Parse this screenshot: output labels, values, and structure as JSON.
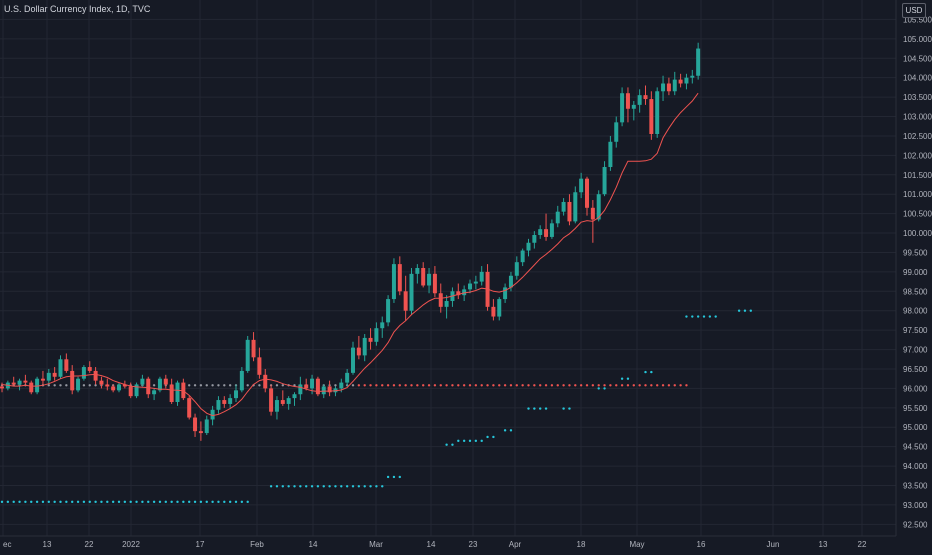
{
  "header": {
    "title": "U.S. Dollar Currency Index, 1D, TVC",
    "currency": "USD"
  },
  "colors": {
    "background": "#161a25",
    "up": "#26a69a",
    "down": "#ef5350",
    "ma_line": "#ef5350",
    "dots_bull": "#26c6da",
    "dots_bear": "#ef5350",
    "dots_neutral": "#9598a1",
    "grid": "#232733"
  },
  "chart_data": {
    "type": "candlestick",
    "y_ticks": [
      "92.500",
      "93.000",
      "93.500",
      "94.000",
      "94.500",
      "95.000",
      "95.500",
      "96.000",
      "96.500",
      "97.000",
      "97.500",
      "98.000",
      "98.500",
      "99.000",
      "99.500",
      "100.000",
      "100.500",
      "101.000",
      "101.500",
      "102.000",
      "102.500",
      "103.000",
      "103.500",
      "104.000",
      "104.500",
      "105.000",
      "105.500"
    ],
    "x_ticks": [
      "ec",
      "13",
      "22",
      "2022",
      "17",
      "Feb",
      "14",
      "Mar",
      "14",
      "23",
      "Apr",
      "18",
      "May",
      "16",
      "Jun",
      "13",
      "22"
    ],
    "ylim": [
      92.2,
      106.0
    ],
    "ohlc": [
      [
        96.05,
        96.15,
        95.9,
        96.0
      ],
      [
        96.0,
        96.2,
        95.95,
        96.15
      ],
      [
        96.15,
        96.3,
        96.05,
        96.1
      ],
      [
        96.1,
        96.25,
        95.95,
        96.2
      ],
      [
        96.2,
        96.35,
        96.1,
        96.15
      ],
      [
        96.15,
        96.2,
        95.85,
        95.9
      ],
      [
        95.9,
        96.3,
        95.85,
        96.25
      ],
      [
        96.25,
        96.45,
        96.1,
        96.2
      ],
      [
        96.2,
        96.5,
        96.1,
        96.4
      ],
      [
        96.4,
        96.55,
        96.2,
        96.3
      ],
      [
        96.3,
        96.85,
        96.25,
        96.75
      ],
      [
        96.75,
        96.9,
        96.4,
        96.45
      ],
      [
        96.45,
        96.6,
        95.85,
        95.95
      ],
      [
        95.95,
        96.3,
        95.9,
        96.25
      ],
      [
        96.25,
        96.6,
        96.2,
        96.55
      ],
      [
        96.55,
        96.7,
        96.4,
        96.45
      ],
      [
        96.45,
        96.55,
        96.1,
        96.2
      ],
      [
        96.2,
        96.3,
        96.0,
        96.1
      ],
      [
        96.1,
        96.25,
        95.95,
        96.05
      ],
      [
        96.05,
        96.1,
        95.9,
        95.95
      ],
      [
        95.95,
        96.15,
        95.9,
        96.1
      ],
      [
        96.1,
        96.2,
        96.0,
        96.05
      ],
      [
        96.05,
        96.15,
        95.75,
        95.8
      ],
      [
        95.8,
        96.15,
        95.75,
        96.1
      ],
      [
        96.1,
        96.35,
        96.05,
        96.25
      ],
      [
        96.25,
        96.3,
        95.75,
        95.85
      ],
      [
        95.85,
        96.0,
        95.7,
        95.95
      ],
      [
        95.95,
        96.3,
        95.9,
        96.25
      ],
      [
        96.25,
        96.35,
        96.0,
        96.1
      ],
      [
        96.1,
        96.25,
        95.6,
        95.65
      ],
      [
        95.65,
        96.2,
        95.55,
        96.15
      ],
      [
        96.15,
        96.25,
        95.7,
        95.75
      ],
      [
        95.75,
        95.8,
        95.2,
        95.25
      ],
      [
        95.25,
        95.35,
        94.75,
        94.9
      ],
      [
        94.9,
        95.15,
        94.65,
        94.85
      ],
      [
        94.85,
        95.3,
        94.8,
        95.2
      ],
      [
        95.2,
        95.55,
        95.05,
        95.45
      ],
      [
        95.45,
        95.8,
        95.35,
        95.7
      ],
      [
        95.7,
        95.8,
        95.5,
        95.6
      ],
      [
        95.6,
        95.85,
        95.5,
        95.75
      ],
      [
        95.75,
        96.1,
        95.65,
        95.95
      ],
      [
        95.95,
        96.55,
        95.9,
        96.45
      ],
      [
        96.45,
        97.35,
        96.4,
        97.25
      ],
      [
        97.25,
        97.45,
        96.7,
        96.8
      ],
      [
        96.8,
        97.05,
        96.25,
        96.35
      ],
      [
        96.35,
        96.5,
        95.9,
        96.0
      ],
      [
        96.0,
        96.1,
        95.3,
        95.4
      ],
      [
        95.4,
        95.8,
        95.2,
        95.7
      ],
      [
        95.7,
        95.95,
        95.55,
        95.6
      ],
      [
        95.6,
        95.8,
        95.45,
        95.75
      ],
      [
        95.75,
        95.9,
        95.55,
        95.85
      ],
      [
        95.85,
        96.3,
        95.7,
        96.1
      ],
      [
        96.1,
        96.25,
        95.95,
        96.0
      ],
      [
        96.0,
        96.35,
        95.85,
        96.25
      ],
      [
        96.25,
        96.3,
        95.8,
        95.85
      ],
      [
        95.85,
        96.1,
        95.75,
        96.05
      ],
      [
        96.05,
        96.2,
        95.8,
        95.9
      ],
      [
        95.9,
        96.05,
        95.8,
        96.0
      ],
      [
        96.0,
        96.25,
        95.9,
        96.15
      ],
      [
        96.15,
        96.5,
        96.05,
        96.4
      ],
      [
        96.4,
        97.2,
        96.35,
        97.05
      ],
      [
        97.05,
        97.35,
        96.75,
        96.85
      ],
      [
        96.85,
        97.4,
        96.7,
        97.3
      ],
      [
        97.3,
        97.55,
        97.0,
        97.2
      ],
      [
        97.2,
        97.7,
        97.1,
        97.55
      ],
      [
        97.55,
        97.85,
        97.3,
        97.7
      ],
      [
        97.7,
        98.4,
        97.6,
        98.3
      ],
      [
        98.3,
        99.35,
        98.2,
        99.2
      ],
      [
        99.2,
        99.4,
        98.4,
        98.5
      ],
      [
        98.5,
        98.9,
        97.75,
        98.0
      ],
      [
        98.0,
        99.1,
        97.9,
        98.95
      ],
      [
        98.95,
        99.2,
        98.7,
        99.1
      ],
      [
        99.1,
        99.25,
        98.6,
        98.65
      ],
      [
        98.65,
        99.1,
        98.45,
        98.95
      ],
      [
        98.95,
        99.15,
        98.35,
        98.45
      ],
      [
        98.45,
        98.7,
        97.95,
        98.1
      ],
      [
        98.1,
        98.4,
        97.8,
        98.25
      ],
      [
        98.25,
        98.6,
        98.1,
        98.5
      ],
      [
        98.5,
        98.7,
        98.3,
        98.4
      ],
      [
        98.4,
        98.65,
        98.25,
        98.55
      ],
      [
        98.55,
        98.8,
        98.45,
        98.7
      ],
      [
        98.7,
        98.9,
        98.55,
        98.75
      ],
      [
        98.75,
        99.15,
        98.65,
        99.0
      ],
      [
        99.0,
        99.2,
        98.0,
        98.1
      ],
      [
        98.1,
        98.3,
        97.75,
        97.85
      ],
      [
        97.85,
        98.35,
        97.75,
        98.3
      ],
      [
        98.3,
        98.7,
        98.2,
        98.6
      ],
      [
        98.6,
        99.0,
        98.5,
        98.9
      ],
      [
        98.9,
        99.4,
        98.8,
        99.25
      ],
      [
        99.25,
        99.6,
        99.15,
        99.55
      ],
      [
        99.55,
        99.85,
        99.4,
        99.75
      ],
      [
        99.75,
        100.05,
        99.6,
        99.95
      ],
      [
        99.95,
        100.2,
        99.85,
        100.1
      ],
      [
        100.1,
        100.5,
        99.8,
        99.9
      ],
      [
        99.9,
        100.35,
        99.85,
        100.25
      ],
      [
        100.25,
        100.7,
        100.15,
        100.55
      ],
      [
        100.55,
        100.9,
        100.45,
        100.8
      ],
      [
        100.8,
        101.0,
        100.2,
        100.3
      ],
      [
        100.3,
        101.2,
        100.25,
        101.05
      ],
      [
        101.05,
        101.55,
        100.9,
        101.4
      ],
      [
        101.4,
        101.45,
        100.45,
        100.65
      ],
      [
        100.65,
        100.85,
        99.75,
        100.35
      ],
      [
        100.35,
        101.1,
        100.3,
        101.0
      ],
      [
        101.0,
        101.85,
        100.95,
        101.7
      ],
      [
        101.7,
        102.5,
        101.6,
        102.35
      ],
      [
        102.35,
        103.0,
        102.2,
        102.85
      ],
      [
        102.85,
        103.75,
        102.75,
        103.6
      ],
      [
        103.6,
        103.75,
        102.85,
        103.2
      ],
      [
        103.2,
        103.4,
        102.9,
        103.3
      ],
      [
        103.3,
        103.7,
        103.1,
        103.55
      ],
      [
        103.55,
        103.8,
        103.3,
        103.45
      ],
      [
        103.45,
        103.65,
        102.4,
        102.55
      ],
      [
        102.55,
        103.75,
        102.45,
        103.65
      ],
      [
        103.65,
        104.05,
        103.4,
        103.85
      ],
      [
        103.85,
        104.0,
        103.55,
        103.65
      ],
      [
        103.65,
        104.15,
        103.55,
        103.95
      ],
      [
        103.95,
        104.1,
        103.75,
        103.85
      ],
      [
        103.85,
        104.1,
        103.7,
        104.0
      ],
      [
        104.0,
        104.2,
        103.85,
        104.05
      ],
      [
        104.05,
        104.9,
        103.95,
        104.75
      ]
    ],
    "ma": [
      96.1,
      96.08,
      96.06,
      96.06,
      96.08,
      96.06,
      96.06,
      96.08,
      96.12,
      96.18,
      96.25,
      96.3,
      96.32,
      96.32,
      96.33,
      96.35,
      96.36,
      96.33,
      96.28,
      96.2,
      96.15,
      96.1,
      96.06,
      96.04,
      96.03,
      96.02,
      96.0,
      95.98,
      95.98,
      95.96,
      95.95,
      95.94,
      95.82,
      95.66,
      95.48,
      95.36,
      95.3,
      95.33,
      95.4,
      95.48,
      95.58,
      95.72,
      95.92,
      96.1,
      96.2,
      96.24,
      96.22,
      96.18,
      96.12,
      96.08,
      96.05,
      96.03,
      95.98,
      95.94,
      95.92,
      95.93,
      95.93,
      95.94,
      95.96,
      96.02,
      96.18,
      96.35,
      96.52,
      96.66,
      96.82,
      96.98,
      97.18,
      97.45,
      97.62,
      97.74,
      97.9,
      98.02,
      98.15,
      98.25,
      98.32,
      98.32,
      98.34,
      98.38,
      98.42,
      98.46,
      98.48,
      98.52,
      98.58,
      98.56,
      98.5,
      98.48,
      98.52,
      98.6,
      98.72,
      98.86,
      99.02,
      99.18,
      99.34,
      99.45,
      99.58,
      99.72,
      99.88,
      99.98,
      100.12,
      100.28,
      100.32,
      100.3,
      100.4,
      100.58,
      100.86,
      101.18,
      101.55,
      101.85,
      101.85,
      101.85,
      101.86,
      101.9,
      102.05,
      102.45,
      102.7,
      102.92,
      103.1,
      103.25,
      103.4,
      103.6
    ],
    "dot_groups": [
      {
        "kind": "neutral",
        "level": 96.08,
        "from": 0,
        "to": 60
      },
      {
        "kind": "bear",
        "level": 96.08,
        "from": 61,
        "to": 117
      },
      {
        "kind": "bull",
        "level": 93.08,
        "from": 0,
        "to": 42
      },
      {
        "kind": "bull",
        "level": 93.48,
        "from": 46,
        "to": 65
      },
      {
        "kind": "bull",
        "level": 93.72,
        "from": 66,
        "to": 68
      },
      {
        "kind": "bull",
        "level": 94.55,
        "from": 76,
        "to": 77
      },
      {
        "kind": "bull",
        "level": 94.65,
        "from": 78,
        "to": 82
      },
      {
        "kind": "bull",
        "level": 94.75,
        "from": 83,
        "to": 84
      },
      {
        "kind": "bull",
        "level": 94.92,
        "from": 86,
        "to": 87
      },
      {
        "kind": "bull",
        "level": 95.48,
        "from": 90,
        "to": 93
      },
      {
        "kind": "bull",
        "level": 95.48,
        "from": 96,
        "to": 97
      },
      {
        "kind": "bull",
        "level": 96.0,
        "from": 102,
        "to": 103
      },
      {
        "kind": "bull",
        "level": 96.25,
        "from": 106,
        "to": 107
      },
      {
        "kind": "bull",
        "level": 96.42,
        "from": 110,
        "to": 111
      },
      {
        "kind": "bull",
        "level": 97.85,
        "from": 117,
        "to": 122
      },
      {
        "kind": "bull",
        "level": 98.0,
        "from": 126,
        "to": 128
      }
    ]
  }
}
